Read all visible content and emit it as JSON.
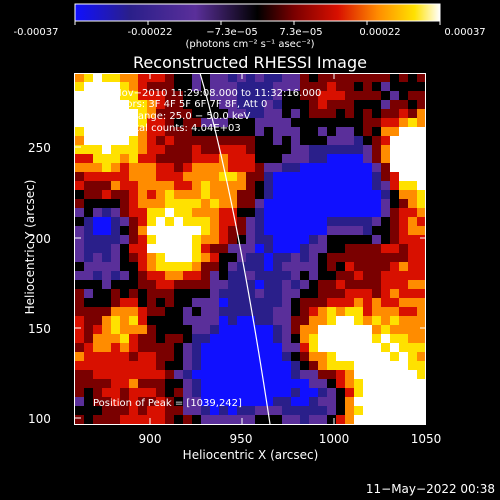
{
  "colorbar": {
    "ticks": [
      "-0.00037",
      "-0.00022",
      "−7.3e−05",
      "7.3e−05",
      "0.00022",
      "0.00037"
    ],
    "unit_label": "(photons cm⁻² s⁻¹ asec⁻²)",
    "colors": [
      "#1010ff",
      "#2a1f8a",
      "#5a2f9a",
      "#000000",
      "#7a0000",
      "#d81000",
      "#ff8c00",
      "#ffe100",
      "#ffffff"
    ]
  },
  "plot": {
    "title": "Reconstructed RHESSI Image",
    "annotations": {
      "line1": "20−Nov−2010 11:29:08.000 to 11:32:16.000",
      "line2": "Detectors: 3F 4F 5F 6F 7F 8F, Att 0",
      "line3": "Energy Range: 25.0 − 50.0 keV",
      "line4": "Clean     Total counts: 4.04E+03",
      "peak": "Position of Peak = [1039,242]"
    },
    "xlabel": "Heliocentric X (arcsec)",
    "ylabel": "Heliocentric Y (arcsec)"
  },
  "chart_data": {
    "type": "heatmap",
    "title": "Reconstructed RHESSI Image",
    "xlabel": "Heliocentric X (arcsec)",
    "ylabel": "Heliocentric Y (arcsec)",
    "xlim": [
      860,
      1050
    ],
    "ylim": [
      100,
      290
    ],
    "x_ticks": [
      "900",
      "950",
      "1000",
      "1050"
    ],
    "y_ticks": [
      "100",
      "150",
      "200",
      "250"
    ],
    "color_range": [
      -0.00037,
      0.00037
    ],
    "peak_position": [
      1039,
      242
    ]
  },
  "footer": {
    "timestamp": "11−May−2022 00:38"
  }
}
